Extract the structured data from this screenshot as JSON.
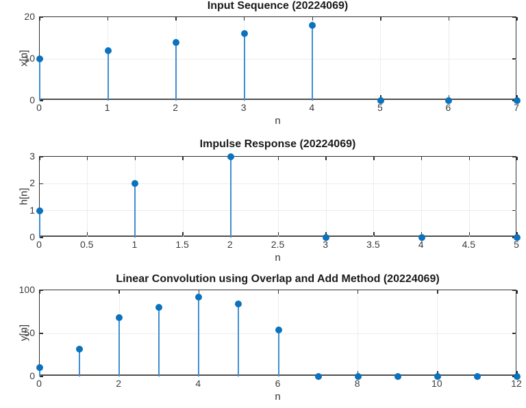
{
  "figure": {
    "background": "#ffffff",
    "colors": {
      "marker": "#0b72bd",
      "stem": "#3d8ed2",
      "axis": "#2e2e2e",
      "baseline": "#4d4d4d",
      "grid": "#ececec",
      "title_text": "#1a1a1a",
      "tick_text": "#3a3a3a"
    }
  },
  "chart_data": [
    {
      "type": "stem",
      "title": "Input Sequence (20224069)",
      "xlabel": "n",
      "ylabel": "x[n]",
      "x": [
        0,
        1,
        2,
        3,
        4,
        5,
        6,
        7
      ],
      "values": [
        10,
        12,
        14,
        16,
        18,
        0,
        0,
        0
      ],
      "xlim": [
        0,
        7
      ],
      "ylim": [
        0,
        20
      ],
      "xticks": [
        0,
        1,
        2,
        3,
        4,
        5,
        6,
        7
      ],
      "yticks": [
        0,
        10,
        20
      ],
      "grid": true,
      "legend": "none"
    },
    {
      "type": "stem",
      "title": "Impulse Response (20224069)",
      "xlabel": "n",
      "ylabel": "h[n]",
      "x": [
        0,
        1,
        2,
        3,
        4,
        5
      ],
      "values": [
        1,
        2,
        3,
        0,
        0,
        0
      ],
      "xlim": [
        0,
        5
      ],
      "ylim": [
        0,
        3
      ],
      "xticks": [
        0,
        0.5,
        1,
        1.5,
        2,
        2.5,
        3,
        3.5,
        4,
        4.5,
        5
      ],
      "yticks": [
        0,
        1,
        2,
        3
      ],
      "grid": true,
      "legend": "none"
    },
    {
      "type": "stem",
      "title": "Linear Convolution using Overlap and Add Method (20224069)",
      "xlabel": "n",
      "ylabel": "y[n]",
      "x": [
        0,
        1,
        2,
        3,
        4,
        5,
        6,
        7,
        8,
        9,
        10,
        11,
        12
      ],
      "values": [
        10,
        32,
        68,
        80,
        92,
        84,
        54,
        0,
        0,
        0,
        0,
        0,
        0
      ],
      "xlim": [
        0,
        12
      ],
      "ylim": [
        0,
        100
      ],
      "xticks": [
        0,
        2,
        4,
        6,
        8,
        10,
        12
      ],
      "yticks": [
        0,
        50,
        100
      ],
      "grid": true,
      "legend": "none"
    }
  ]
}
